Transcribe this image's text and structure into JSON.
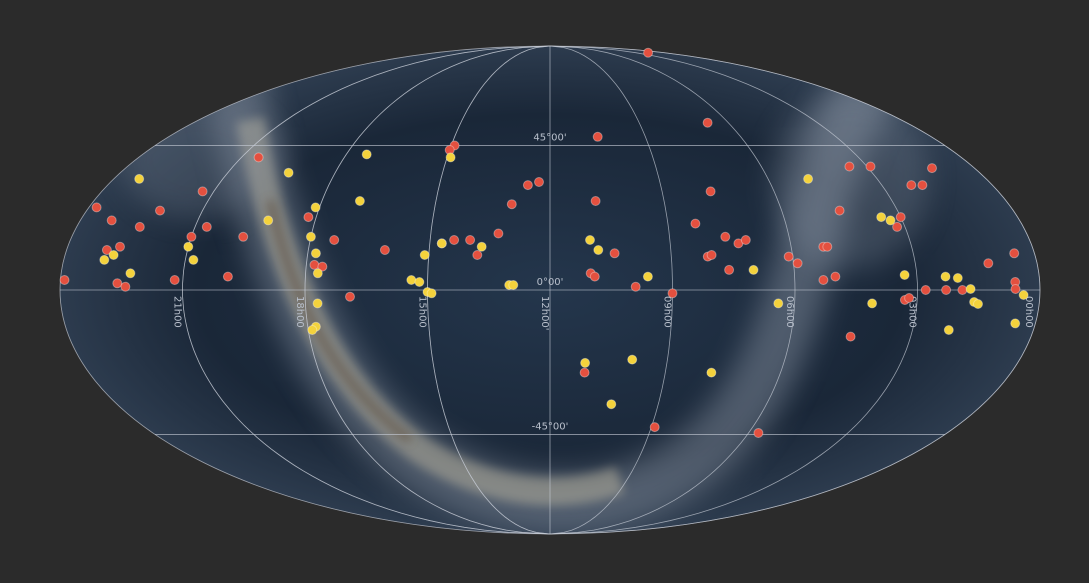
{
  "map": {
    "projection": "mollweide",
    "ra_ticks": [
      {
        "value": 21,
        "label": "21h00"
      },
      {
        "value": 18,
        "label": "18h00"
      },
      {
        "value": 15,
        "label": "15h00"
      },
      {
        "value": 12,
        "label": "12h00'"
      },
      {
        "value": 9,
        "label": "09h00"
      },
      {
        "value": 6,
        "label": "06h00"
      },
      {
        "value": 3,
        "label": "03h00"
      },
      {
        "value": 0,
        "label": "00h00"
      }
    ],
    "dec_ticks": [
      {
        "value": 45,
        "label": "45°00'"
      },
      {
        "value": 0,
        "label": "0°00'"
      },
      {
        "value": -45,
        "label": "-45°00'"
      }
    ],
    "marker_sets": [
      {
        "color": "#e4503f",
        "points": [
          [
            1.7,
            84
          ],
          [
            10.5,
            48
          ],
          [
            6.7,
            53
          ],
          [
            14.9,
            45
          ],
          [
            15.0,
            43.5
          ],
          [
            20.5,
            41
          ],
          [
            23.8,
            25
          ],
          [
            23.2,
            21
          ],
          [
            21.3,
            30
          ],
          [
            22.1,
            24
          ],
          [
            22.4,
            19
          ],
          [
            23.0,
            12
          ],
          [
            22.7,
            13
          ],
          [
            23.9,
            3
          ],
          [
            22.6,
            2
          ],
          [
            22.4,
            1
          ],
          [
            21.2,
            3
          ],
          [
            21.0,
            16
          ],
          [
            20.7,
            19
          ],
          [
            19.7,
            16
          ],
          [
            19.9,
            4
          ],
          [
            18.2,
            22
          ],
          [
            17.8,
            7.5
          ],
          [
            17.6,
            7
          ],
          [
            17.4,
            15
          ],
          [
            16.9,
            -2
          ],
          [
            16.1,
            12
          ],
          [
            14.7,
            14
          ],
          [
            14.4,
            15
          ],
          [
            14.0,
            15
          ],
          [
            13.8,
            10.5
          ],
          [
            13.3,
            17
          ],
          [
            13.0,
            26
          ],
          [
            12.6,
            32
          ],
          [
            12.3,
            33
          ],
          [
            10.8,
            27
          ],
          [
            11.0,
            5
          ],
          [
            10.9,
            4
          ],
          [
            10.4,
            11
          ],
          [
            9.9,
            1
          ],
          [
            9.0,
            -1
          ],
          [
            8.3,
            20
          ],
          [
            7.7,
            30
          ],
          [
            8.1,
            10
          ],
          [
            8.0,
            10.5
          ],
          [
            7.6,
            16
          ],
          [
            7.3,
            14
          ],
          [
            7.1,
            15
          ],
          [
            7.6,
            6
          ],
          [
            6.1,
            10
          ],
          [
            5.9,
            8
          ],
          [
            5.2,
            13
          ],
          [
            5.1,
            13
          ],
          [
            5.3,
            3
          ],
          [
            5.0,
            4
          ],
          [
            4.5,
            24
          ],
          [
            3.5,
            38
          ],
          [
            2.9,
            38
          ],
          [
            4.5,
            -14
          ],
          [
            2.2,
            32
          ],
          [
            1.9,
            32
          ],
          [
            1.2,
            37.5
          ],
          [
            3.0,
            22
          ],
          [
            3.2,
            19
          ],
          [
            3.3,
            -3
          ],
          [
            3.2,
            -2.4
          ],
          [
            2.8,
            0
          ],
          [
            2.3,
            0
          ],
          [
            1.9,
            0
          ],
          [
            1.2,
            8
          ],
          [
            0.5,
            11
          ],
          [
            0.6,
            2.4
          ],
          [
            0.6,
            0.3
          ],
          [
            8.9,
            -42.5
          ],
          [
            5.7,
            -44.5
          ],
          [
            11.1,
            -25
          ]
        ]
      },
      {
        "color": "#f4d23c",
        "points": [
          [
            23.3,
            34
          ],
          [
            19.3,
            36
          ],
          [
            17.4,
            42
          ],
          [
            14.9,
            41
          ],
          [
            17.0,
            27
          ],
          [
            19.2,
            21
          ],
          [
            18.1,
            25
          ],
          [
            18.0,
            16
          ],
          [
            17.8,
            11
          ],
          [
            17.7,
            5
          ],
          [
            17.7,
            -4
          ],
          [
            17.8,
            -11
          ],
          [
            17.9,
            -12
          ],
          [
            21.0,
            13
          ],
          [
            20.8,
            9
          ],
          [
            23.0,
            9
          ],
          [
            22.8,
            10.5
          ],
          [
            22.3,
            5
          ],
          [
            15.4,
            3
          ],
          [
            15.2,
            2.4
          ],
          [
            15.0,
            -0.6
          ],
          [
            14.9,
            -1
          ],
          [
            15.1,
            10.5
          ],
          [
            14.7,
            14
          ],
          [
            13.7,
            13
          ],
          [
            13.0,
            1.5
          ],
          [
            12.9,
            1.5
          ],
          [
            11.0,
            15
          ],
          [
            10.8,
            12
          ],
          [
            9.6,
            4
          ],
          [
            11.1,
            -22
          ],
          [
            9.9,
            -21
          ],
          [
            10.3,
            -35
          ],
          [
            7.8,
            -25
          ],
          [
            7.0,
            6
          ],
          [
            6.4,
            -4
          ],
          [
            4.9,
            34
          ],
          [
            4.1,
            -4
          ],
          [
            3.5,
            22
          ],
          [
            3.3,
            21
          ],
          [
            3.3,
            4.5
          ],
          [
            2.3,
            4
          ],
          [
            2.0,
            3.6
          ],
          [
            1.7,
            0.3
          ],
          [
            1.6,
            -3.6
          ],
          [
            1.5,
            -4.2
          ],
          [
            0.4,
            -1.5
          ],
          [
            0.5,
            -10
          ],
          [
            2.1,
            -12
          ]
        ]
      }
    ]
  }
}
